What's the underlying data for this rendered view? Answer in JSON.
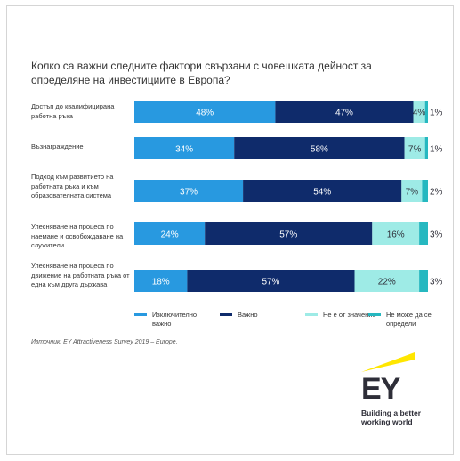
{
  "title": "Колко са важни следните фактори свързани с човешката дейност за определяне на инвестициите в Европа?",
  "source": "Източник: EY Attractiveness Survey 2019 – Europe.",
  "logo": {
    "mark": "EY",
    "tagline_line1": "Building a better",
    "tagline_line2": "working world",
    "accent_color": "#ffe600"
  },
  "chart_data": {
    "type": "bar",
    "orientation": "horizontal",
    "stacked": true,
    "categories": [
      "Достъп до квалифицирана работна ръка",
      "Възнаграждение",
      "Подход към развитието на работната ръка и към образователната система",
      "Улесняване на процеса по наемане и освобождаване на служители",
      "Улесняване на процеса по движение на работната ръка от една към друга държава"
    ],
    "series": [
      {
        "name": "Изключително важно",
        "color": "#2899e0",
        "label_color": "#ffffff",
        "values": [
          48,
          34,
          37,
          24,
          18
        ]
      },
      {
        "name": "Важно",
        "color": "#0f2b6b",
        "label_color": "#ffffff",
        "values": [
          47,
          58,
          54,
          57,
          57
        ]
      },
      {
        "name": "Не е от значение",
        "color": "#9eebe6",
        "label_color": "#2e2e38",
        "values": [
          4,
          7,
          7,
          16,
          22
        ]
      },
      {
        "name": "Не може да се определи",
        "color": "#26b8c0",
        "label_color": "#2e2e38",
        "values": [
          1,
          1,
          2,
          3,
          3
        ]
      }
    ],
    "data_labels": [
      [
        "48%",
        "47%",
        "4%",
        "1%"
      ],
      [
        "34%",
        "58%",
        "7%",
        "1%"
      ],
      [
        "37%",
        "54%",
        "7%",
        "2%"
      ],
      [
        "24%",
        "57%",
        "16%",
        "3%"
      ],
      [
        "18%",
        "57%",
        "22%",
        "3%"
      ]
    ],
    "xlim": [
      0,
      100
    ],
    "grid": false,
    "legend_position": "bottom"
  }
}
